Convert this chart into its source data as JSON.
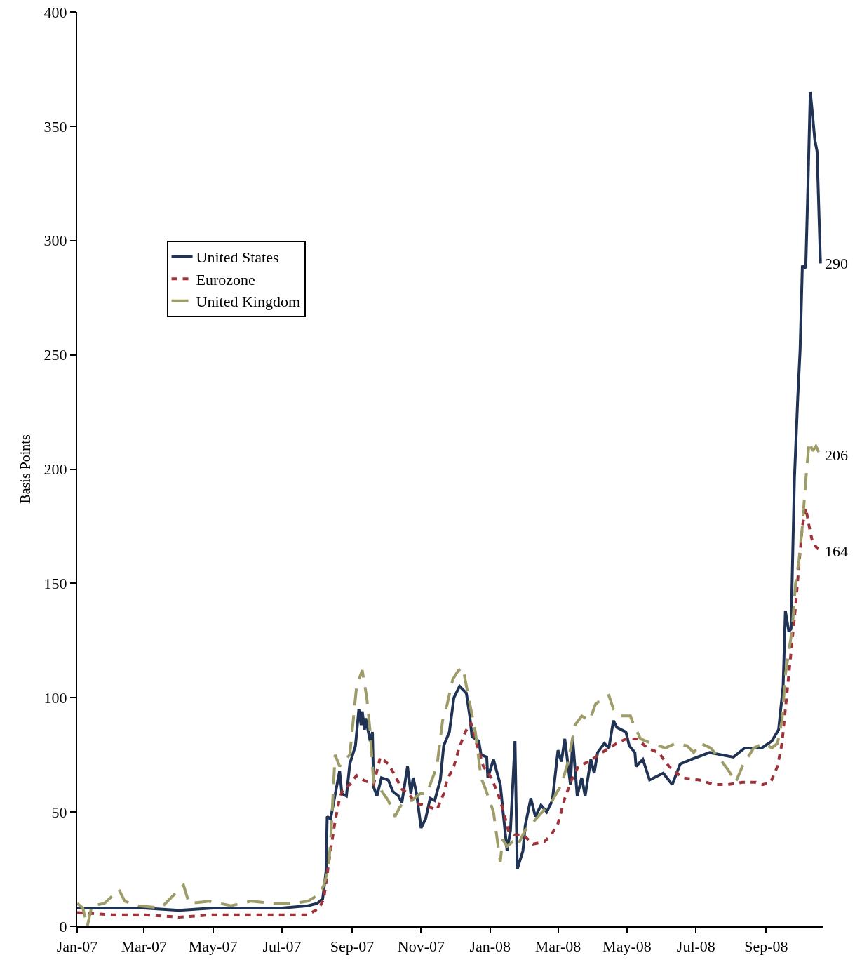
{
  "chart_data": {
    "type": "line",
    "ylabel": "Basis Points",
    "xlim": [
      "2007-01-01",
      "2008-10-21"
    ],
    "xticks": [
      {
        "value": "2007-01-01",
        "label": "Jan-07"
      },
      {
        "value": "2007-03-01",
        "label": "Mar-07"
      },
      {
        "value": "2007-05-01",
        "label": "May-07"
      },
      {
        "value": "2007-07-01",
        "label": "Jul-07"
      },
      {
        "value": "2007-09-01",
        "label": "Sep-07"
      },
      {
        "value": "2007-11-01",
        "label": "Nov-07"
      },
      {
        "value": "2008-01-01",
        "label": "Jan-08"
      },
      {
        "value": "2008-03-01",
        "label": "Mar-08"
      },
      {
        "value": "2008-05-01",
        "label": "May-08"
      },
      {
        "value": "2008-07-01",
        "label": "Jul-08"
      },
      {
        "value": "2008-09-01",
        "label": "Sep-08"
      }
    ],
    "ylim": [
      0,
      400
    ],
    "yticks": [
      0,
      50,
      100,
      150,
      200,
      250,
      300,
      350,
      400
    ],
    "grid": false,
    "legend": "top left",
    "marker": "none",
    "annotations": [
      {
        "text": "290",
        "x": "2008-10-19",
        "y": 290
      },
      {
        "text": "206",
        "x": "2008-10-19",
        "y": 206
      },
      {
        "text": "164",
        "x": "2008-10-19",
        "y": 164
      }
    ],
    "series": [
      {
        "name": "United States",
        "color": "#203354",
        "line_style": "solid",
        "x": [
          "2007-01-01",
          "2007-01-26",
          "2007-03-01",
          "2007-04-01",
          "2007-05-01",
          "2007-06-01",
          "2007-07-01",
          "2007-07-24",
          "2007-08-01",
          "2007-08-06",
          "2007-08-09",
          "2007-08-10",
          "2007-08-13",
          "2007-08-21",
          "2007-08-23",
          "2007-08-27",
          "2007-08-30",
          "2007-09-04",
          "2007-09-07",
          "2007-09-09",
          "2007-09-10",
          "2007-09-12",
          "2007-09-13",
          "2007-09-17",
          "2007-09-19",
          "2007-09-20",
          "2007-09-23",
          "2007-09-27",
          "2007-10-03",
          "2007-10-07",
          "2007-10-12",
          "2007-10-15",
          "2007-10-20",
          "2007-10-23",
          "2007-10-25",
          "2007-10-28",
          "2007-11-01",
          "2007-11-05",
          "2007-11-09",
          "2007-11-13",
          "2007-11-18",
          "2007-11-21",
          "2007-11-26",
          "2007-11-30",
          "2007-12-05",
          "2007-12-11",
          "2007-12-14",
          "2007-12-16",
          "2007-12-22",
          "2007-12-24",
          "2007-12-29",
          "2007-12-30",
          "2008-01-04",
          "2008-01-10",
          "2008-01-16",
          "2008-01-19",
          "2008-01-23",
          "2008-01-25",
          "2008-01-30",
          "2008-02-01",
          "2008-02-06",
          "2008-02-10",
          "2008-02-15",
          "2008-02-20",
          "2008-02-25",
          "2008-03-01",
          "2008-03-04",
          "2008-03-07",
          "2008-03-12",
          "2008-03-14",
          "2008-03-18",
          "2008-03-22",
          "2008-03-25",
          "2008-03-30",
          "2008-04-02",
          "2008-04-05",
          "2008-04-11",
          "2008-04-15",
          "2008-04-19",
          "2008-04-22",
          "2008-04-30",
          "2008-05-03",
          "2008-05-08",
          "2008-05-09",
          "2008-05-15",
          "2008-05-21",
          "2008-06-02",
          "2008-06-10",
          "2008-06-17",
          "2008-06-27",
          "2008-07-13",
          "2008-08-03",
          "2008-08-13",
          "2008-08-28",
          "2008-09-06",
          "2008-09-12",
          "2008-09-16",
          "2008-09-18",
          "2008-09-21",
          "2008-09-23",
          "2008-09-26",
          "2008-09-29",
          "2008-10-01",
          "2008-10-03",
          "2008-10-06",
          "2008-10-08",
          "2008-10-10",
          "2008-10-12",
          "2008-10-14",
          "2008-10-16",
          "2008-10-19"
        ],
        "values": [
          8,
          8,
          8,
          7,
          8,
          8,
          8,
          9,
          10,
          12,
          24,
          48,
          47,
          68,
          58,
          57,
          71,
          79,
          95,
          88,
          94,
          86,
          91,
          81,
          85,
          61,
          57,
          65,
          64,
          59,
          57,
          54,
          70,
          58,
          65,
          58,
          43,
          47,
          56,
          55,
          64,
          79,
          85,
          100,
          105,
          102,
          92,
          83,
          81,
          75,
          74,
          65,
          73,
          62,
          33,
          42,
          81,
          25,
          33,
          44,
          56,
          48,
          53,
          50,
          55,
          77,
          72,
          82,
          62,
          82,
          57,
          65,
          57,
          73,
          67,
          76,
          80,
          78,
          90,
          87,
          85,
          79,
          76,
          70,
          73,
          64,
          67,
          62,
          71,
          73,
          76,
          74,
          78,
          78,
          81,
          86,
          105,
          138,
          129,
          130,
          196,
          232,
          252,
          289,
          288,
          325,
          365,
          355,
          344,
          339,
          290
        ]
      },
      {
        "name": "Eurozone",
        "color": "#a0333a",
        "line_style": "dotted",
        "x": [
          "2007-01-01",
          "2007-02-01",
          "2007-03-01",
          "2007-04-01",
          "2007-05-01",
          "2007-06-01",
          "2007-07-01",
          "2007-07-24",
          "2007-08-03",
          "2007-08-07",
          "2007-08-12",
          "2007-08-17",
          "2007-08-21",
          "2007-08-24",
          "2007-08-30",
          "2007-09-05",
          "2007-09-11",
          "2007-09-20",
          "2007-09-26",
          "2007-10-03",
          "2007-10-09",
          "2007-10-15",
          "2007-10-21",
          "2007-10-27",
          "2007-11-03",
          "2007-11-09",
          "2007-11-15",
          "2007-11-21",
          "2007-11-24",
          "2007-11-30",
          "2007-12-04",
          "2007-12-10",
          "2007-12-15",
          "2007-12-20",
          "2007-12-26",
          "2008-01-02",
          "2008-01-08",
          "2008-01-13",
          "2008-01-17",
          "2008-01-23",
          "2008-01-30",
          "2008-02-08",
          "2008-02-18",
          "2008-02-24",
          "2008-03-01",
          "2008-03-07",
          "2008-03-13",
          "2008-03-19",
          "2008-03-28",
          "2008-04-06",
          "2008-04-15",
          "2008-04-22",
          "2008-04-30",
          "2008-05-10",
          "2008-05-19",
          "2008-05-29",
          "2008-06-07",
          "2008-06-19",
          "2008-07-04",
          "2008-07-17",
          "2008-07-29",
          "2008-08-11",
          "2008-08-23",
          "2008-08-29",
          "2008-09-05",
          "2008-09-11",
          "2008-09-15",
          "2008-09-18",
          "2008-09-21",
          "2008-09-24",
          "2008-09-27",
          "2008-09-30",
          "2008-10-03",
          "2008-10-06",
          "2008-10-09",
          "2008-10-12",
          "2008-10-15",
          "2008-10-19"
        ],
        "values": [
          6,
          5,
          5,
          4,
          5,
          5,
          5,
          5,
          8,
          12,
          30,
          46,
          56,
          60,
          62,
          66,
          64,
          62,
          74,
          71,
          66,
          60,
          58,
          54,
          53,
          52,
          51,
          58,
          64,
          70,
          77,
          85,
          89,
          80,
          70,
          65,
          58,
          50,
          42,
          40,
          40,
          36,
          37,
          40,
          45,
          56,
          64,
          70,
          72,
          75,
          78,
          80,
          82,
          82,
          78,
          76,
          70,
          65,
          64,
          62,
          62,
          63,
          63,
          62,
          63,
          70,
          80,
          95,
          110,
          125,
          140,
          158,
          175,
          183,
          175,
          168,
          166,
          164
        ]
      },
      {
        "name": "United Kingdom",
        "color": "#9e9c68",
        "line_style": "dashed",
        "x": [
          "2007-01-01",
          "2007-01-06",
          "2007-01-10",
          "2007-01-14",
          "2007-01-25",
          "2007-02-07",
          "2007-02-12",
          "2007-02-24",
          "2007-03-16",
          "2007-04-05",
          "2007-04-10",
          "2007-04-28",
          "2007-05-17",
          "2007-06-04",
          "2007-06-23",
          "2007-07-12",
          "2007-07-24",
          "2007-08-03",
          "2007-08-07",
          "2007-08-11",
          "2007-08-13",
          "2007-08-17",
          "2007-08-21",
          "2007-08-24",
          "2007-08-30",
          "2007-09-05",
          "2007-09-10",
          "2007-09-14",
          "2007-09-17",
          "2007-09-20",
          "2007-09-26",
          "2007-10-03",
          "2007-10-09",
          "2007-10-13",
          "2007-10-18",
          "2007-10-24",
          "2007-10-31",
          "2007-11-06",
          "2007-11-09",
          "2007-11-15",
          "2007-11-20",
          "2007-11-24",
          "2007-11-29",
          "2007-12-04",
          "2007-12-08",
          "2007-12-13",
          "2007-12-19",
          "2007-12-24",
          "2007-12-28",
          "2008-01-04",
          "2008-01-10",
          "2008-01-12",
          "2008-01-16",
          "2008-01-21",
          "2008-01-25",
          "2008-02-01",
          "2008-02-07",
          "2008-02-16",
          "2008-02-25",
          "2008-03-04",
          "2008-03-10",
          "2008-03-16",
          "2008-03-22",
          "2008-03-29",
          "2008-04-03",
          "2008-04-10",
          "2008-04-15",
          "2008-04-19",
          "2008-04-25",
          "2008-05-04",
          "2008-05-07",
          "2008-05-13",
          "2008-05-23",
          "2008-06-04",
          "2008-06-13",
          "2008-06-23",
          "2008-06-29",
          "2008-07-05",
          "2008-07-14",
          "2008-07-24",
          "2008-07-30",
          "2008-08-05",
          "2008-08-11",
          "2008-08-21",
          "2008-08-30",
          "2008-09-06",
          "2008-09-11",
          "2008-09-15",
          "2008-09-18",
          "2008-09-21",
          "2008-09-24",
          "2008-09-27",
          "2008-09-30",
          "2008-10-03",
          "2008-10-06",
          "2008-10-09",
          "2008-10-12",
          "2008-10-15",
          "2008-10-19"
        ],
        "values": [
          10,
          8,
          0,
          9,
          10,
          16,
          11,
          9,
          8,
          18,
          10,
          11,
          9,
          11,
          10,
          10,
          11,
          14,
          18,
          25,
          37,
          75,
          70,
          72,
          75,
          105,
          112,
          100,
          85,
          63,
          60,
          55,
          48,
          52,
          55,
          55,
          58,
          58,
          62,
          70,
          90,
          97,
          108,
          112,
          113,
          100,
          85,
          65,
          60,
          50,
          28,
          38,
          35,
          37,
          35,
          42,
          45,
          50,
          55,
          62,
          72,
          88,
          92,
          90,
          97,
          100,
          101,
          95,
          92,
          92,
          88,
          82,
          80,
          78,
          80,
          79,
          76,
          80,
          78,
          72,
          68,
          63,
          70,
          78,
          80,
          78,
          80,
          90,
          110,
          120,
          130,
          150,
          160,
          175,
          195,
          212,
          208,
          210,
          206
        ]
      }
    ]
  }
}
